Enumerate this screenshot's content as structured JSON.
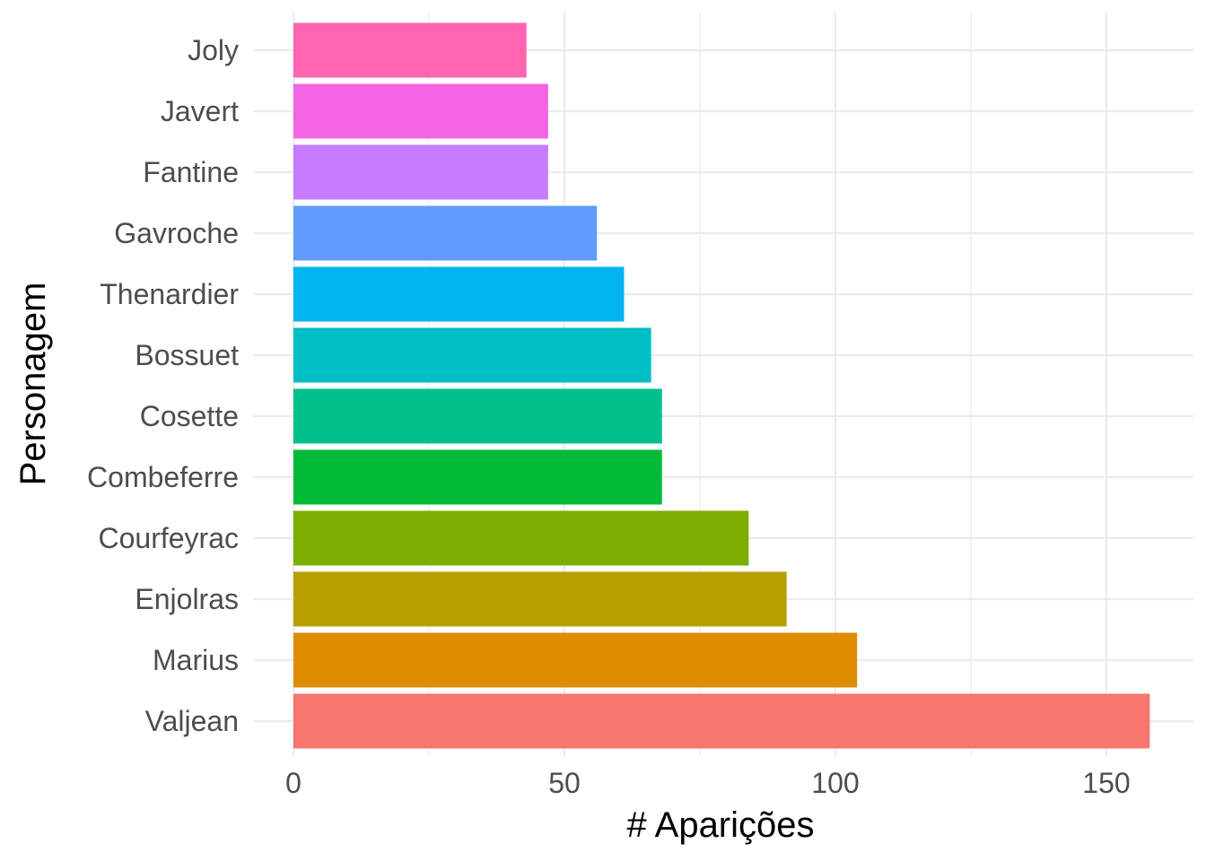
{
  "chart_data": {
    "type": "bar",
    "orientation": "horizontal",
    "xlabel": "# Aparições",
    "ylabel": "Personagem",
    "xlim": [
      0,
      158
    ],
    "xticks": [
      0,
      50,
      100,
      150
    ],
    "grid": true,
    "legend": "none",
    "categories": [
      "Valjean",
      "Marius",
      "Enjolras",
      "Courfeyrac",
      "Combeferre",
      "Cosette",
      "Bossuet",
      "Thenardier",
      "Gavroche",
      "Fantine",
      "Javert",
      "Joly"
    ],
    "values": [
      158,
      104,
      91,
      84,
      68,
      68,
      66,
      61,
      56,
      47,
      47,
      43
    ],
    "colors": [
      "#F8766D",
      "#DE8C00",
      "#B79F00",
      "#7CAE00",
      "#00BA38",
      "#00C08B",
      "#00BFC4",
      "#00B4F0",
      "#619CFF",
      "#C77CFF",
      "#F564E3",
      "#FF64B0"
    ]
  }
}
